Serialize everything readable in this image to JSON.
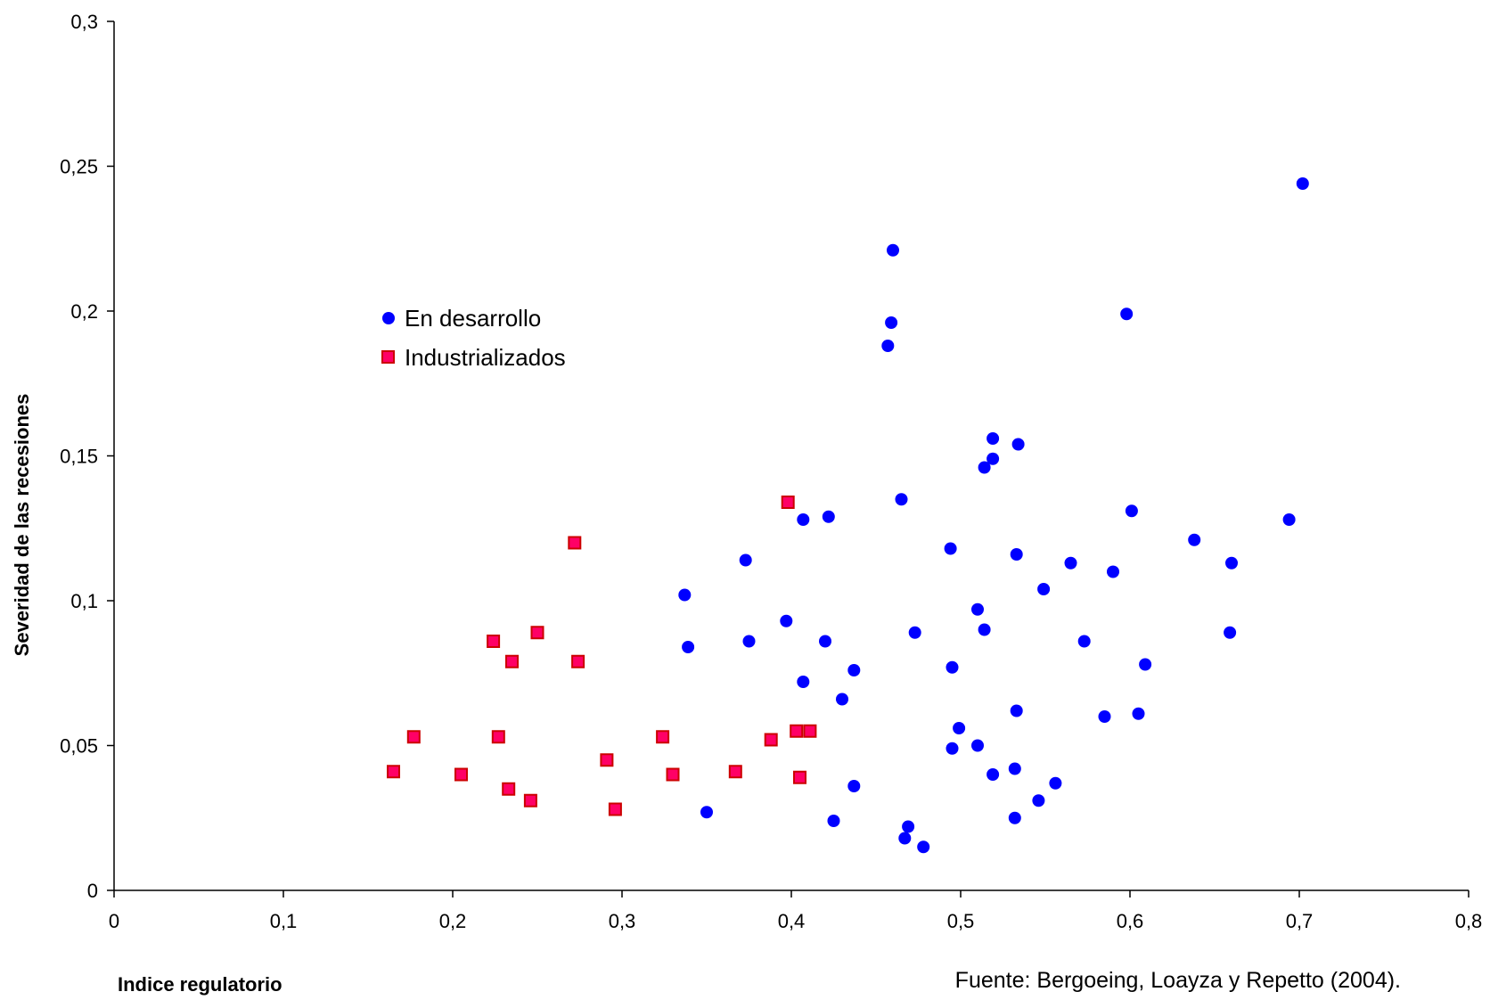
{
  "chart_data": {
    "type": "scatter",
    "title": "",
    "xlabel": "Indice regulatorio",
    "ylabel": "Severidad de las recesiones",
    "xlim": [
      0,
      0.8
    ],
    "ylim": [
      0,
      0.3
    ],
    "x_ticks": [
      "0",
      "0,1",
      "0,2",
      "0,3",
      "0,4",
      "0,5",
      "0,6",
      "0,7",
      "0,8"
    ],
    "y_ticks": [
      "0",
      "0,05",
      "0,1",
      "0,15",
      "0,2",
      "0,25",
      "0,3"
    ],
    "grid": false,
    "legend_position": "upper-left",
    "source": "Fuente: Bergoeing, Loayza y Repetto (2004).",
    "series": [
      {
        "name": "En desarrollo",
        "color": "#0000ff",
        "marker": "circle",
        "points": [
          [
            0.702,
            0.244
          ],
          [
            0.46,
            0.221
          ],
          [
            0.459,
            0.196
          ],
          [
            0.457,
            0.188
          ],
          [
            0.598,
            0.199
          ],
          [
            0.519,
            0.156
          ],
          [
            0.534,
            0.154
          ],
          [
            0.519,
            0.149
          ],
          [
            0.514,
            0.146
          ],
          [
            0.465,
            0.135
          ],
          [
            0.407,
            0.128
          ],
          [
            0.422,
            0.129
          ],
          [
            0.601,
            0.131
          ],
          [
            0.694,
            0.128
          ],
          [
            0.638,
            0.121
          ],
          [
            0.494,
            0.118
          ],
          [
            0.533,
            0.116
          ],
          [
            0.373,
            0.114
          ],
          [
            0.565,
            0.113
          ],
          [
            0.66,
            0.113
          ],
          [
            0.59,
            0.11
          ],
          [
            0.549,
            0.104
          ],
          [
            0.337,
            0.102
          ],
          [
            0.51,
            0.097
          ],
          [
            0.397,
            0.093
          ],
          [
            0.473,
            0.089
          ],
          [
            0.514,
            0.09
          ],
          [
            0.659,
            0.089
          ],
          [
            0.339,
            0.084
          ],
          [
            0.375,
            0.086
          ],
          [
            0.42,
            0.086
          ],
          [
            0.573,
            0.086
          ],
          [
            0.609,
            0.078
          ],
          [
            0.437,
            0.076
          ],
          [
            0.495,
            0.077
          ],
          [
            0.407,
            0.072
          ],
          [
            0.43,
            0.066
          ],
          [
            0.533,
            0.062
          ],
          [
            0.605,
            0.061
          ],
          [
            0.585,
            0.06
          ],
          [
            0.499,
            0.056
          ],
          [
            0.495,
            0.049
          ],
          [
            0.51,
            0.05
          ],
          [
            0.532,
            0.042
          ],
          [
            0.519,
            0.04
          ],
          [
            0.556,
            0.037
          ],
          [
            0.437,
            0.036
          ],
          [
            0.546,
            0.031
          ],
          [
            0.35,
            0.027
          ],
          [
            0.532,
            0.025
          ],
          [
            0.425,
            0.024
          ],
          [
            0.469,
            0.022
          ],
          [
            0.467,
            0.018
          ],
          [
            0.478,
            0.015
          ]
        ]
      },
      {
        "name": "Industrializados",
        "color": "#ff0066",
        "edge_color": "#cc0000",
        "marker": "square",
        "points": [
          [
            0.398,
            0.134
          ],
          [
            0.272,
            0.12
          ],
          [
            0.25,
            0.089
          ],
          [
            0.224,
            0.086
          ],
          [
            0.235,
            0.079
          ],
          [
            0.274,
            0.079
          ],
          [
            0.177,
            0.053
          ],
          [
            0.227,
            0.053
          ],
          [
            0.324,
            0.053
          ],
          [
            0.388,
            0.052
          ],
          [
            0.403,
            0.055
          ],
          [
            0.411,
            0.055
          ],
          [
            0.291,
            0.045
          ],
          [
            0.165,
            0.041
          ],
          [
            0.205,
            0.04
          ],
          [
            0.33,
            0.04
          ],
          [
            0.367,
            0.041
          ],
          [
            0.405,
            0.039
          ],
          [
            0.233,
            0.035
          ],
          [
            0.246,
            0.031
          ],
          [
            0.296,
            0.028
          ]
        ]
      }
    ]
  }
}
